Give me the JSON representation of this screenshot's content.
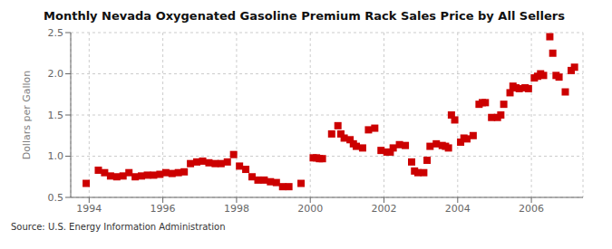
{
  "chart_data": {
    "type": "scatter",
    "title": "Monthly Nevada Oxygenated Gasoline Premium Rack Sales Price by All Sellers",
    "ylabel": "Dollars per Gallon",
    "annotation": "Source: U.S. Energy Information Administration",
    "color": "#cc0000",
    "marker": "square",
    "grid": true,
    "xlim": [
      1993.5,
      2007.4
    ],
    "xticks": [
      1994,
      1996,
      1998,
      2000,
      2002,
      2004,
      2006
    ],
    "ylim": [
      0.5,
      2.5
    ],
    "yticks": [
      0.5,
      {
        "value": 1.0,
        "label": "1.0"
      },
      1.5,
      {
        "value": 2.0,
        "label": "2.0"
      },
      2.5
    ],
    "x": [
      1993.92,
      1994.25,
      1994.42,
      1994.58,
      1994.75,
      1994.92,
      1995.08,
      1995.25,
      1995.42,
      1995.58,
      1995.75,
      1995.92,
      1996.08,
      1996.25,
      1996.42,
      1996.58,
      1996.75,
      1996.92,
      1997.08,
      1997.25,
      1997.42,
      1997.58,
      1997.75,
      1997.92,
      1998.08,
      1998.25,
      1998.42,
      1998.58,
      1998.75,
      1998.92,
      1999.08,
      1999.25,
      1999.42,
      1999.75,
      2000.08,
      2000.17,
      2000.25,
      2000.33,
      2000.58,
      2000.75,
      2000.83,
      2000.92,
      2001.08,
      2001.17,
      2001.25,
      2001.42,
      2001.58,
      2001.75,
      2001.92,
      2002.08,
      2002.17,
      2002.25,
      2002.42,
      2002.58,
      2002.75,
      2002.83,
      2002.92,
      2003.08,
      2003.17,
      2003.25,
      2003.42,
      2003.58,
      2003.67,
      2003.75,
      2003.83,
      2003.92,
      2004.08,
      2004.17,
      2004.25,
      2004.42,
      2004.58,
      2004.67,
      2004.75,
      2004.92,
      2005.08,
      2005.17,
      2005.25,
      2005.42,
      2005.5,
      2005.58,
      2005.67,
      2005.83,
      2005.92,
      2006.08,
      2006.17,
      2006.25,
      2006.33,
      2006.5,
      2006.58,
      2006.67,
      2006.75,
      2006.92,
      2007.08,
      2007.17
    ],
    "values": [
      0.67,
      0.83,
      0.8,
      0.76,
      0.75,
      0.76,
      0.8,
      0.75,
      0.76,
      0.77,
      0.77,
      0.78,
      0.8,
      0.79,
      0.8,
      0.81,
      0.91,
      0.93,
      0.94,
      0.92,
      0.91,
      0.91,
      0.93,
      1.02,
      0.88,
      0.84,
      0.75,
      0.71,
      0.71,
      0.69,
      0.68,
      0.63,
      0.63,
      0.67,
      0.98,
      0.98,
      0.97,
      0.97,
      1.27,
      1.37,
      1.27,
      1.22,
      1.2,
      1.15,
      1.12,
      1.1,
      1.32,
      1.34,
      1.07,
      1.05,
      1.05,
      1.1,
      1.14,
      1.13,
      0.93,
      0.82,
      0.8,
      0.8,
      0.95,
      1.12,
      1.15,
      1.13,
      1.12,
      1.1,
      1.5,
      1.44,
      1.17,
      1.22,
      1.21,
      1.25,
      1.63,
      1.65,
      1.65,
      1.47,
      1.47,
      1.5,
      1.63,
      1.77,
      1.85,
      1.83,
      1.82,
      1.83,
      1.82,
      1.95,
      1.97,
      2.0,
      1.98,
      2.45,
      2.25,
      1.98,
      1.96,
      1.78,
      2.04,
      2.08
    ]
  }
}
